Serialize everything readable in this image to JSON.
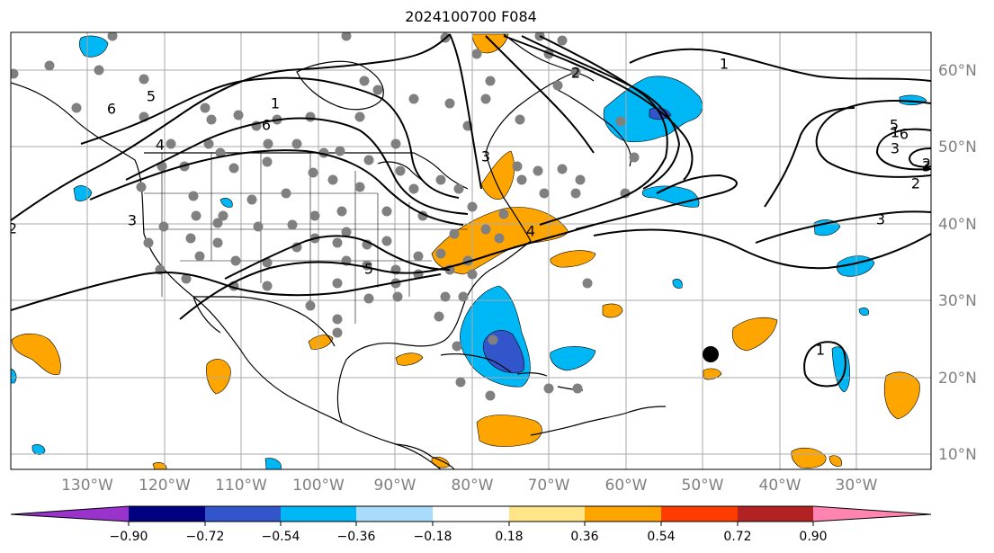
{
  "title": "2024100700 F084",
  "lat_labels": [
    "60°N",
    "50°N",
    "40°N",
    "30°N",
    "20°N",
    "10°N"
  ],
  "lon_labels": [
    "130°W",
    "120°W",
    "110°W",
    "100°W",
    "90°W",
    "80°W",
    "70°W",
    "60°W",
    "50°W",
    "40°W",
    "30°W"
  ],
  "contour_labels": [
    "6",
    "5",
    "4",
    "3",
    "2",
    "1",
    "6",
    "5",
    "4",
    "3",
    "2",
    "1",
    "5",
    "6",
    "3",
    "3",
    "2",
    "3",
    "1",
    "2",
    "1",
    "4",
    "5",
    "6",
    "3",
    "2",
    "1"
  ],
  "colorbar": {
    "labels": [
      "−0.90",
      "−0.72",
      "−0.54",
      "−0.36",
      "−0.18",
      "0.18",
      "0.36",
      "0.54",
      "0.72",
      "0.90"
    ],
    "colors": [
      "#9933cc",
      "#000080",
      "#3355cc",
      "#00b7f5",
      "#a8dcfa",
      "#ffffff",
      "#ffe58a",
      "#ffa500",
      "#ff3c00",
      "#b22222",
      "#ff85b0"
    ]
  },
  "colors": {
    "contour": "#000000",
    "grid": "#aaaaaa",
    "station_dots": "#808080",
    "positive_fill": "#ffa500",
    "negative_fill": "#00b7f5",
    "strong_negative_fill": "#3355cc"
  }
}
